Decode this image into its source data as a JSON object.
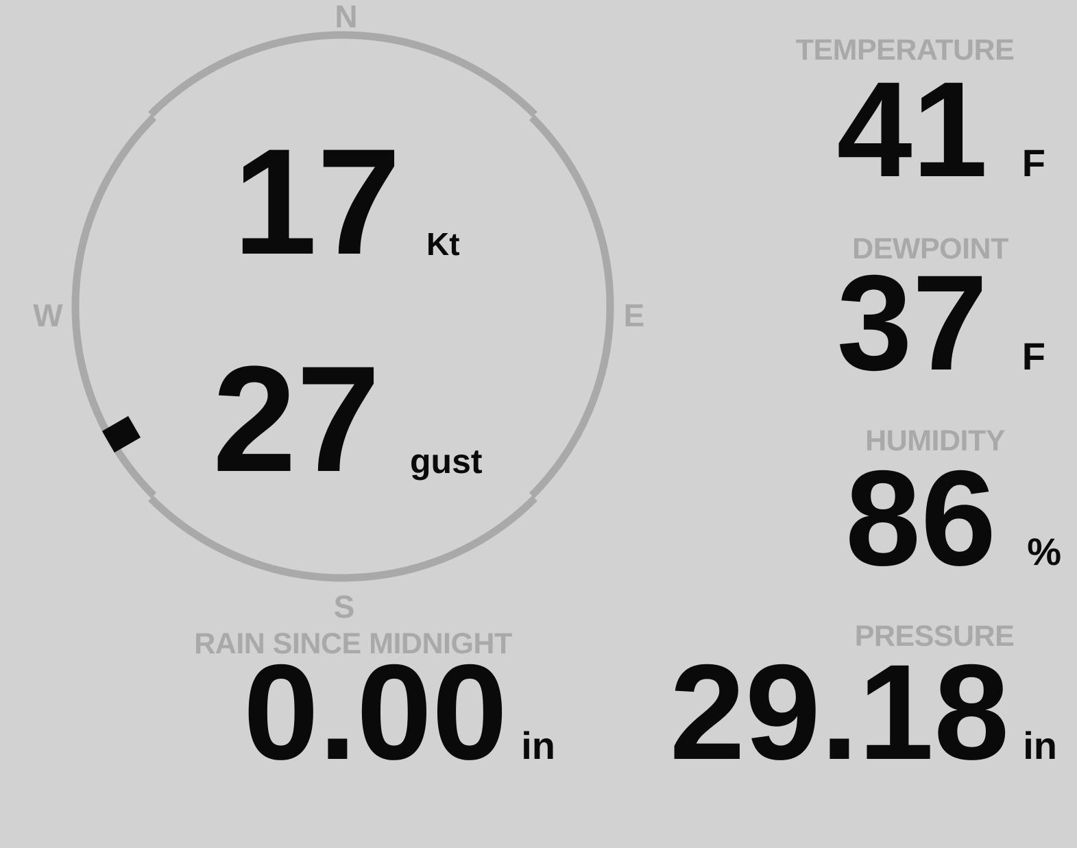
{
  "theme": {
    "background": "#d2d2d2",
    "muted_gray": "#a9a9a9",
    "ink_black": "#0a0a0a"
  },
  "compass": {
    "cardinals": {
      "north": "N",
      "east": "E",
      "south": "S",
      "west": "W"
    },
    "wind": {
      "speed": "17",
      "speed_unit": "Kt",
      "gust": "27",
      "gust_unit": "gust",
      "direction_deg": 240
    }
  },
  "metrics": {
    "temperature": {
      "label": "TEMPERATURE",
      "value": "41",
      "unit": "F"
    },
    "dewpoint": {
      "label": "DEWPOINT",
      "value": "37",
      "unit": "F"
    },
    "humidity": {
      "label": "HUMIDITY",
      "value": "86",
      "unit": "%"
    },
    "pressure": {
      "label": "PRESSURE",
      "value": "29.18",
      "unit": "in"
    },
    "rain": {
      "label": "RAIN SINCE MIDNIGHT",
      "value": "0.00",
      "unit": "in"
    }
  }
}
